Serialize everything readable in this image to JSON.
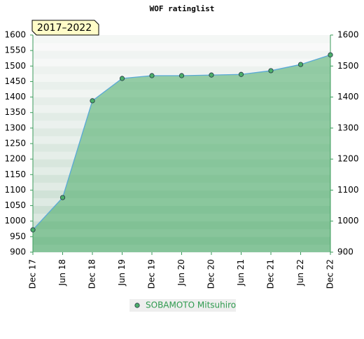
{
  "chart_data": {
    "type": "area",
    "title": "WOF ratinglist",
    "annotation": "2017–2022",
    "categories": [
      "Dec 17",
      "Jun 18",
      "Dec 18",
      "Jun 19",
      "Dec 19",
      "Jun 20",
      "Dec 20",
      "Jun 21",
      "Dec 21",
      "Jun 22",
      "Dec 22"
    ],
    "series": [
      {
        "name": "SOBAMOTO Mitsuhiro",
        "color": "#5aa9d6",
        "values": [
          972,
          1076,
          1388,
          1460,
          1469,
          1469,
          1471,
          1473,
          1485,
          1505,
          1536
        ]
      }
    ],
    "ylim": [
      900,
      1600
    ],
    "yticks": [
      900,
      950,
      1000,
      1050,
      1100,
      1150,
      1200,
      1250,
      1300,
      1350,
      1400,
      1450,
      1500,
      1550,
      1600
    ],
    "y2lim": [
      900,
      1600
    ],
    "y2ticks": [
      900,
      1000,
      1100,
      1200,
      1300,
      1400,
      1500,
      1600
    ]
  }
}
